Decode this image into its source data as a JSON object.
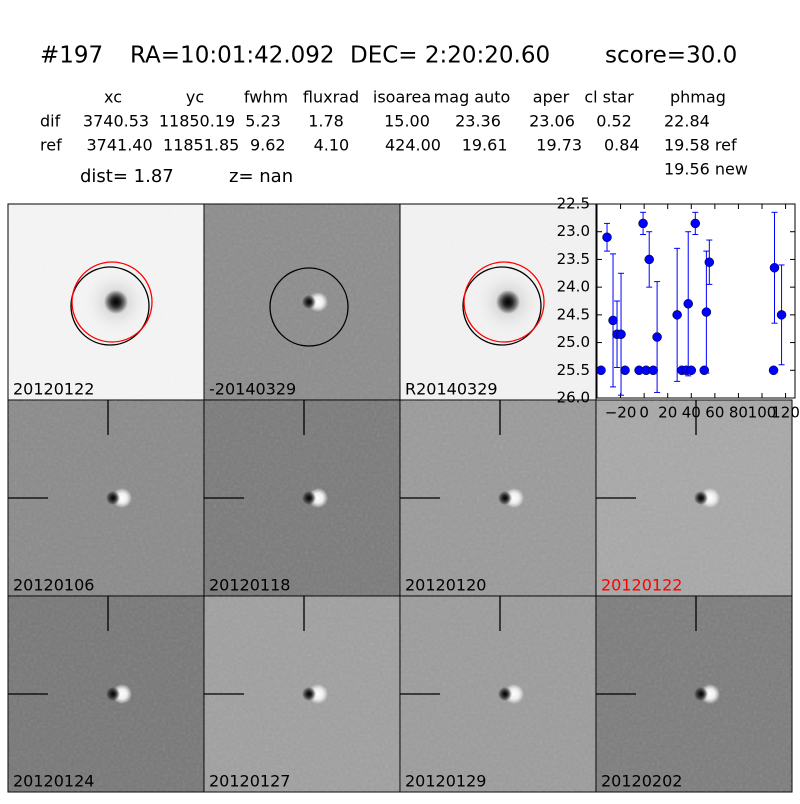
{
  "header": {
    "id": "#197",
    "ra": "RA=10:01:42.092",
    "dec": "DEC= 2:20:20.60",
    "score": "score=30.0",
    "dist": "dist=  1.87",
    "z": "z=   nan"
  },
  "table": {
    "columns": [
      "xc",
      "yc",
      "fwhm",
      "fluxrad",
      "isoarea",
      "mag auto",
      "aper",
      "cl star",
      "phmag"
    ],
    "rows": [
      [
        "dif",
        "3740.53",
        "11850.19",
        "5.23",
        "1.78",
        "15.00",
        "23.36",
        "23.06",
        "0.52",
        "22.84"
      ],
      [
        "ref",
        "3741.40",
        "11851.85",
        "9.62",
        "4.10",
        "424.00",
        "19.61",
        "19.73",
        "0.84",
        "19.58 ref"
      ]
    ],
    "extra": "19.56 new"
  },
  "panels": [
    {
      "label": "20120122"
    },
    {
      "label": "-20140329"
    },
    {
      "label": "R20140329"
    },
    {
      "label": "20120106"
    },
    {
      "label": "20120118"
    },
    {
      "label": "20120120"
    },
    {
      "label": "20120122",
      "label_color": "#ff0000"
    },
    {
      "label": "20120124"
    },
    {
      "label": "20120127"
    },
    {
      "label": "20120129"
    },
    {
      "label": "20120202"
    }
  ],
  "chart_data": {
    "type": "scatter",
    "color": "#0000ff",
    "x": [
      -36.6,
      -31.5,
      -26.4,
      -23,
      -19.6,
      -16.2,
      -4.3,
      -0.9,
      1.7,
      4.3,
      7.7,
      11,
      28,
      32,
      35.7,
      37.4,
      40,
      43.4,
      51,
      52.8,
      55.3,
      109.8,
      110.6,
      116.6
    ],
    "values": [
      25.5,
      23.1,
      24.6,
      24.85,
      24.85,
      25.5,
      25.5,
      22.85,
      25.5,
      23.5,
      25.5,
      24.9,
      24.5,
      25.5,
      25.5,
      24.3,
      25.5,
      22.85,
      25.5,
      24.45,
      23.55,
      25.5,
      23.65,
      24.5
    ],
    "errors": [
      null,
      0.25,
      1.2,
      0.6,
      1.1,
      null,
      null,
      0.2,
      null,
      0.5,
      null,
      1.0,
      1.2,
      null,
      null,
      1.3,
      null,
      0.2,
      null,
      1.1,
      0.4,
      null,
      1.0,
      0.9
    ],
    "xlim": [
      -40,
      128
    ],
    "ylim": [
      22.5,
      26.0
    ],
    "y_inverted": true,
    "xticks": [
      {
        "value": -20,
        "label": "−20"
      },
      0,
      20,
      40,
      60,
      80,
      100,
      120
    ],
    "yticks": [
      22.5,
      {
        "value": 23,
        "label": "23.0"
      },
      23.5,
      {
        "value": 24,
        "label": "24.0"
      },
      24.5,
      {
        "value": 25,
        "label": "25.0"
      },
      25.5,
      {
        "value": 26,
        "label": "26.0"
      }
    ]
  }
}
